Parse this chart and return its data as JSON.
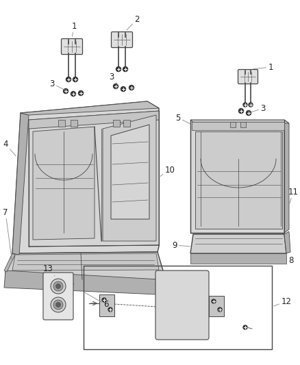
{
  "bg_color": "#ffffff",
  "line_color": "#444444",
  "label_color": "#222222",
  "fig_width": 4.38,
  "fig_height": 5.33,
  "dpi": 100
}
